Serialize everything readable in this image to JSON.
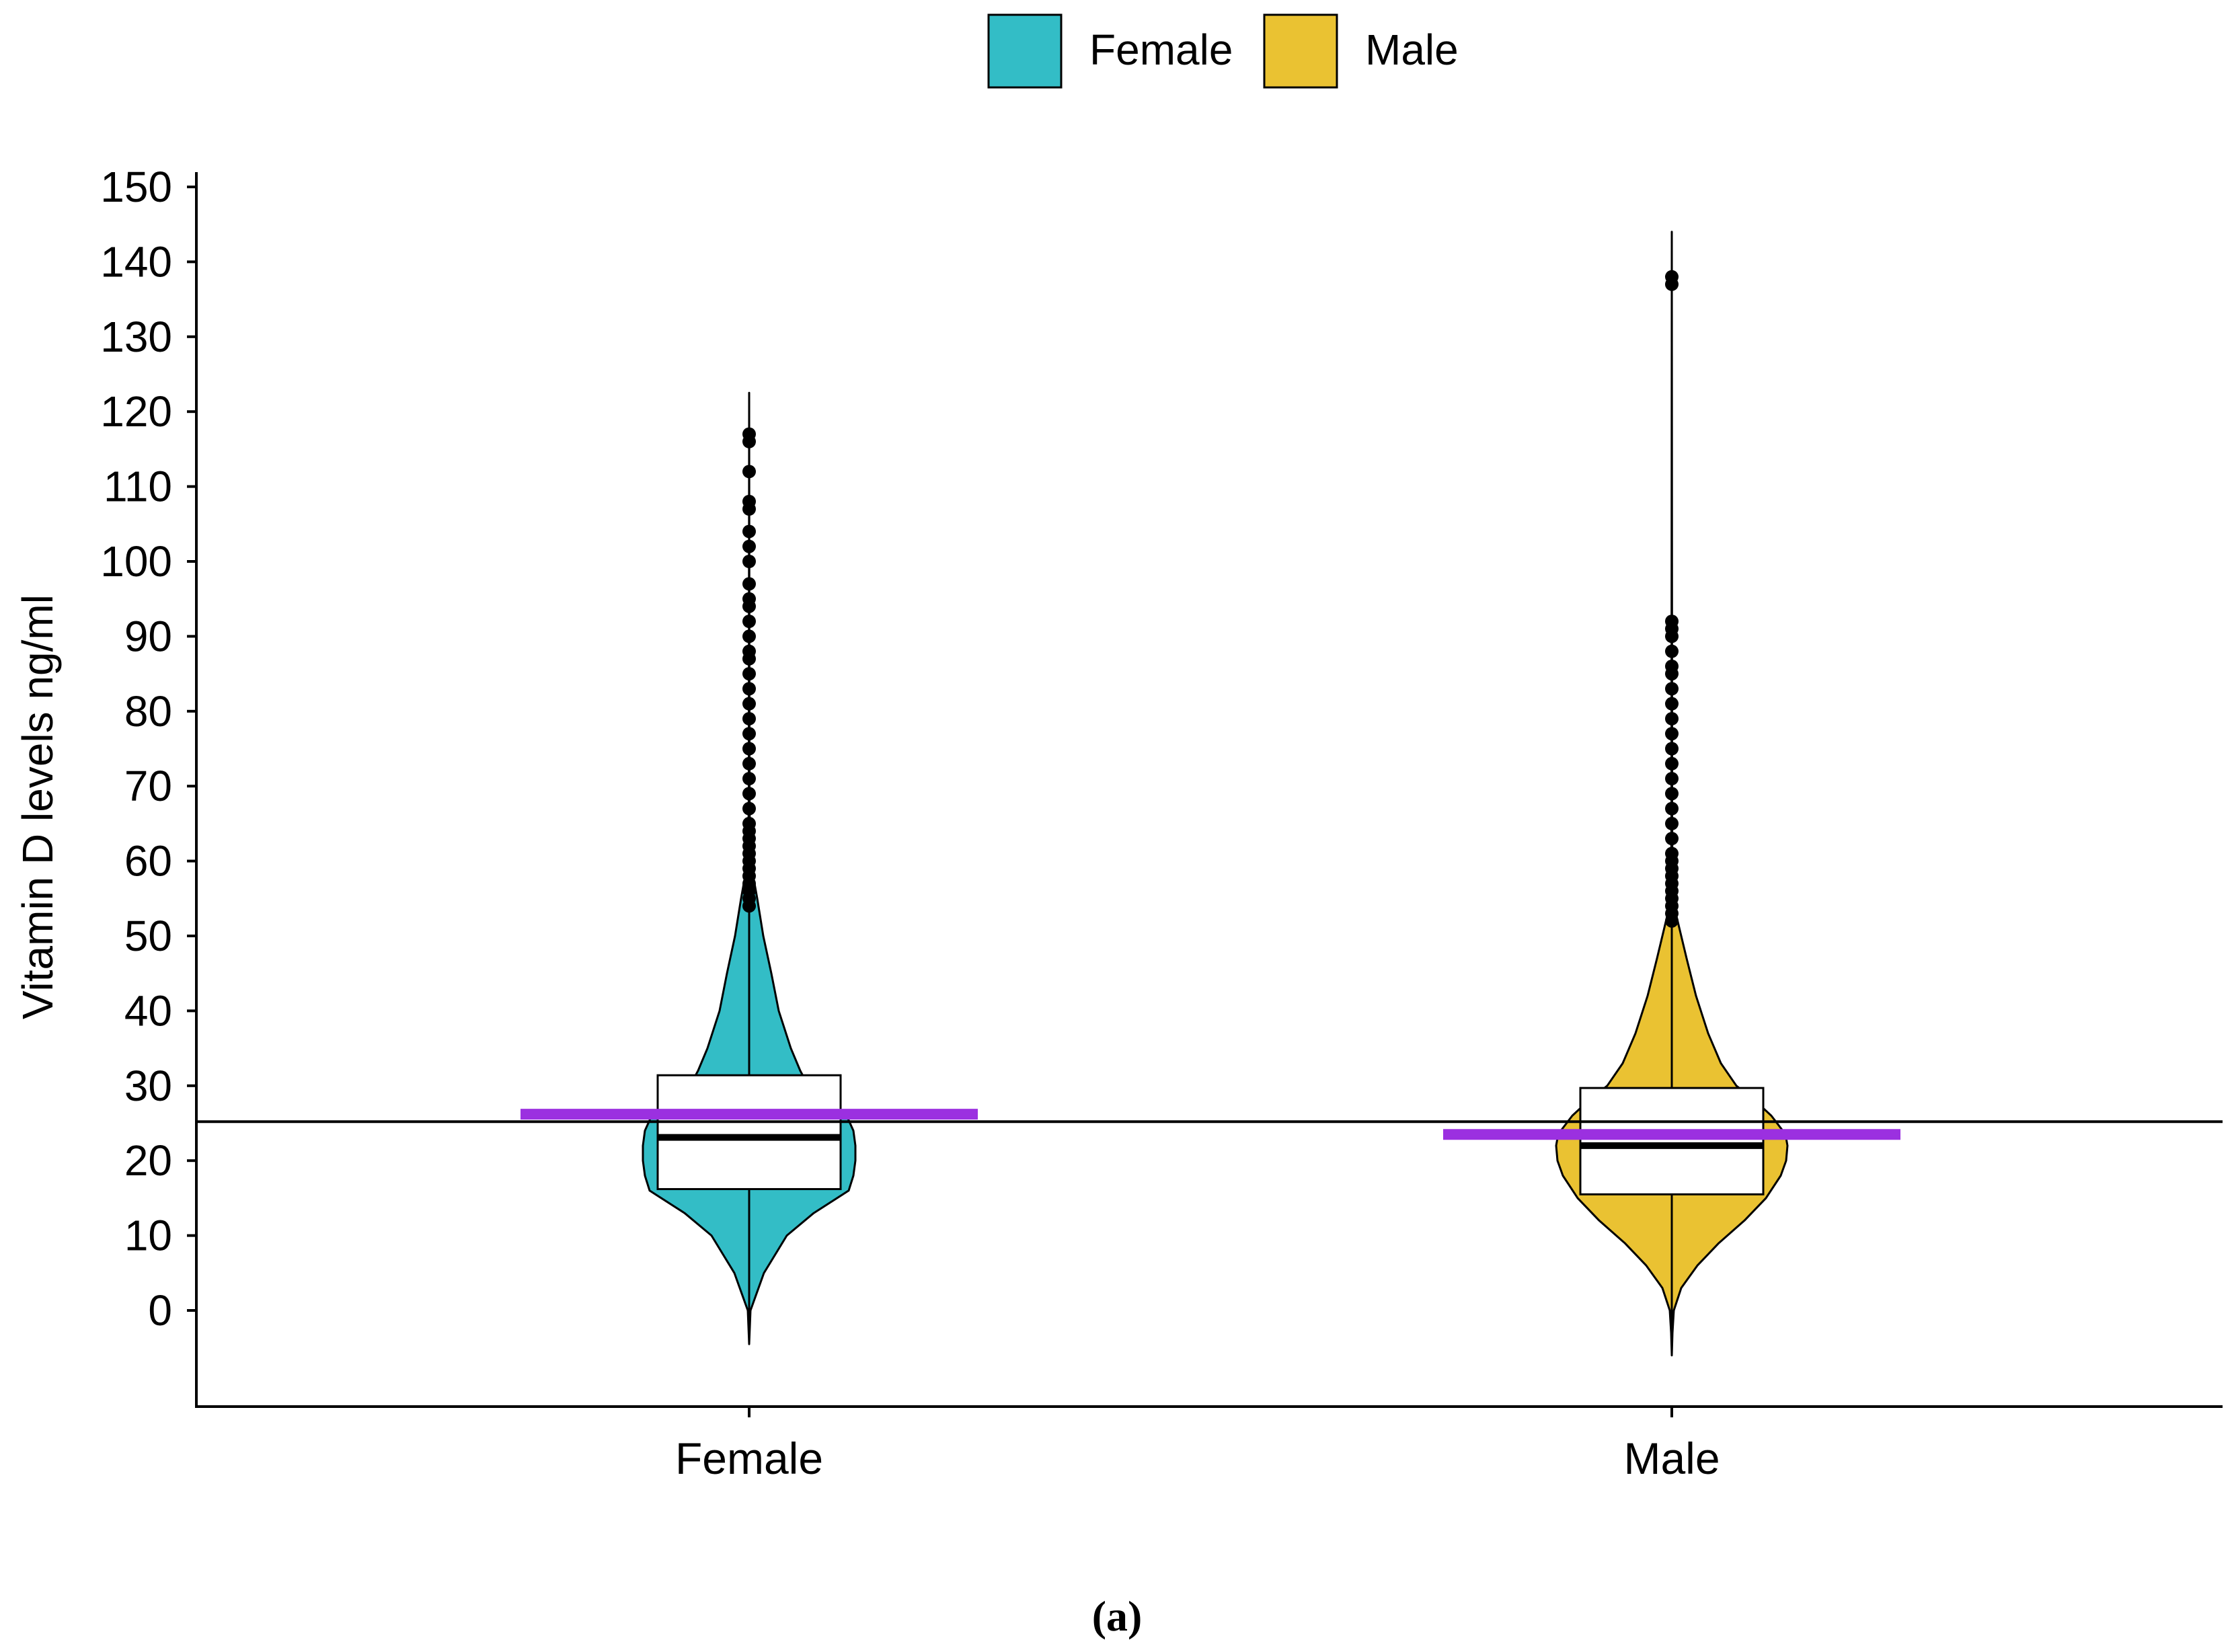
{
  "chart_data": {
    "type": "violin",
    "ylabel": "Vitamin D levels ng/ml",
    "xlabel": "",
    "categories": [
      "Female",
      "Male"
    ],
    "y_ticks": [
      0,
      10,
      20,
      30,
      40,
      50,
      60,
      70,
      80,
      90,
      100,
      110,
      120,
      130,
      140,
      150
    ],
    "ylim": [
      -13,
      150
    ],
    "legend": {
      "placement": "top-center",
      "items": [
        {
          "label": "Female",
          "color": "#33BDC6"
        },
        {
          "label": "Male",
          "color": "#EAC232"
        }
      ]
    },
    "reference_line": {
      "value": 25.2,
      "color": "#000000"
    },
    "series": [
      {
        "name": "Female",
        "color": "#33BDC6",
        "box": {
          "q1": 16.2,
          "median": 23.1,
          "q3": 31.4
        },
        "whisker": {
          "low": -4.5,
          "high": 122.5
        },
        "mean_line": {
          "value": 26.2,
          "color": "#9B30E0"
        },
        "density": [
          [
            -4.5,
            0
          ],
          [
            0,
            2
          ],
          [
            5,
            22
          ],
          [
            10,
            56
          ],
          [
            13,
            96
          ],
          [
            16,
            148
          ],
          [
            18,
            155
          ],
          [
            20,
            158
          ],
          [
            22,
            158
          ],
          [
            24,
            155
          ],
          [
            26,
            145
          ],
          [
            28,
            118
          ],
          [
            30,
            88
          ],
          [
            32,
            76
          ],
          [
            35,
            62
          ],
          [
            40,
            44
          ],
          [
            45,
            33
          ],
          [
            50,
            21
          ],
          [
            55,
            12
          ],
          [
            57.5,
            7
          ],
          [
            60,
            3
          ],
          [
            63,
            1
          ],
          [
            70,
            0.5
          ],
          [
            122.5,
            0
          ]
        ],
        "outliers": [
          54,
          55,
          56,
          57,
          58,
          59,
          60,
          61,
          62,
          63,
          64,
          65,
          67,
          69,
          71,
          73,
          75,
          77,
          79,
          81,
          83,
          85,
          87,
          88,
          90,
          92,
          94,
          95,
          97,
          100,
          102,
          104,
          107,
          108,
          112,
          116,
          117
        ]
      },
      {
        "name": "Male",
        "color": "#EAC232",
        "box": {
          "q1": 15.5,
          "median": 22.0,
          "q3": 29.7
        },
        "whisker": {
          "low": -6,
          "high": 144
        },
        "mean_line": {
          "value": 23.5,
          "color": "#9B30E0"
        },
        "density": [
          [
            -6,
            0
          ],
          [
            -3,
            1
          ],
          [
            0,
            3
          ],
          [
            3,
            14
          ],
          [
            6,
            38
          ],
          [
            9,
            70
          ],
          [
            12,
            108
          ],
          [
            15,
            140
          ],
          [
            18,
            162
          ],
          [
            20,
            170
          ],
          [
            22,
            172
          ],
          [
            23,
            170
          ],
          [
            24,
            165
          ],
          [
            26,
            148
          ],
          [
            28,
            124
          ],
          [
            30,
            96
          ],
          [
            33,
            73
          ],
          [
            37,
            54
          ],
          [
            42,
            36
          ],
          [
            47,
            22
          ],
          [
            50,
            14
          ],
          [
            53,
            6
          ],
          [
            55,
            2.5
          ],
          [
            58,
            1
          ],
          [
            65,
            0.5
          ],
          [
            144,
            0
          ]
        ],
        "outliers": [
          52,
          53,
          54,
          55,
          56,
          57,
          58,
          59,
          60,
          61,
          63,
          65,
          67,
          69,
          71,
          73,
          75,
          77,
          79,
          81,
          83,
          85,
          86,
          88,
          90,
          91,
          92,
          137,
          138
        ]
      }
    ],
    "caption": "(a)"
  }
}
